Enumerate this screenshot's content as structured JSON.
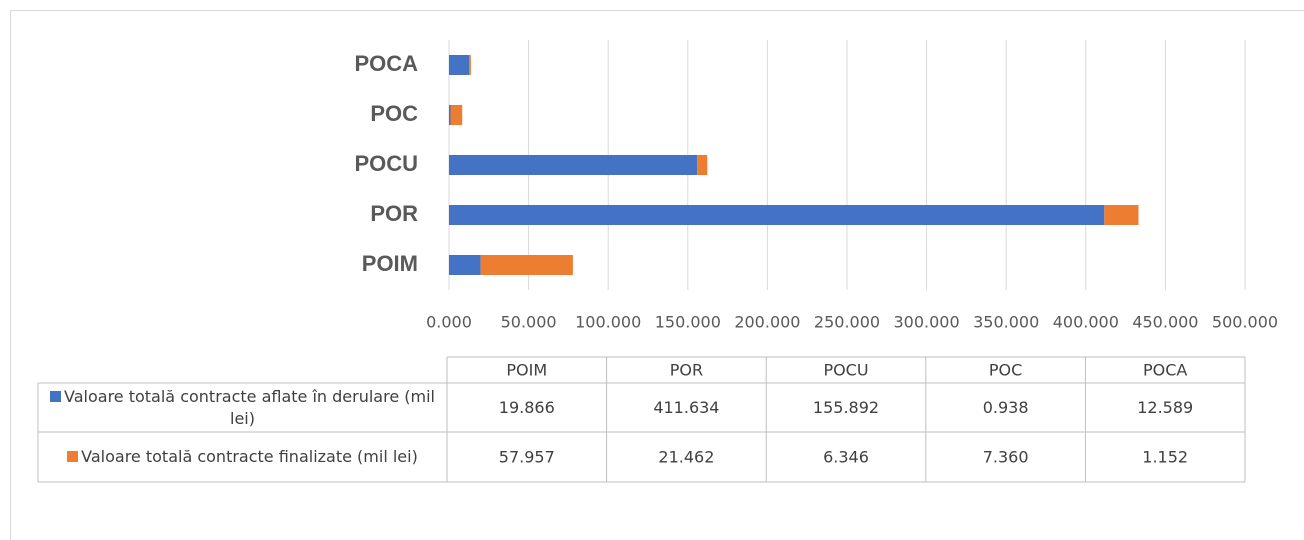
{
  "chart_data": {
    "type": "stacked_barh",
    "categories": [
      "POIM",
      "POR",
      "POCU",
      "POC",
      "POCA"
    ],
    "series": [
      {
        "name": "Valoare totală contracte aflate în derulare (mil lei)",
        "color": "#4472c4",
        "values": [
          19.866,
          411.634,
          155.892,
          0.938,
          12.589
        ],
        "value_labels": [
          "19.866",
          "411.634",
          "155.892",
          "0.938",
          "12.589"
        ]
      },
      {
        "name": "Valoare totală contracte finalizate (mil lei)",
        "color": "#ed7d31",
        "values": [
          57.957,
          21.462,
          6.346,
          7.36,
          1.152
        ],
        "value_labels": [
          "57.957",
          "21.462",
          "6.346",
          "7.360",
          "1.152"
        ]
      }
    ],
    "xlim": [
      0,
      500
    ],
    "xticks": [
      {
        "value": 0,
        "label": "0.000"
      },
      {
        "value": 50,
        "label": "50.000"
      },
      {
        "value": 100,
        "label": "100.000"
      },
      {
        "value": 150,
        "label": "150.000"
      },
      {
        "value": 200,
        "label": "200.000"
      },
      {
        "value": 250,
        "label": "250.000"
      },
      {
        "value": 300,
        "label": "300.000"
      },
      {
        "value": 350,
        "label": "350.000"
      },
      {
        "value": 400,
        "label": "400.000"
      },
      {
        "value": 450,
        "label": "450.000"
      },
      {
        "value": 500,
        "label": "500.000"
      }
    ],
    "grid": true,
    "data_table": true
  }
}
